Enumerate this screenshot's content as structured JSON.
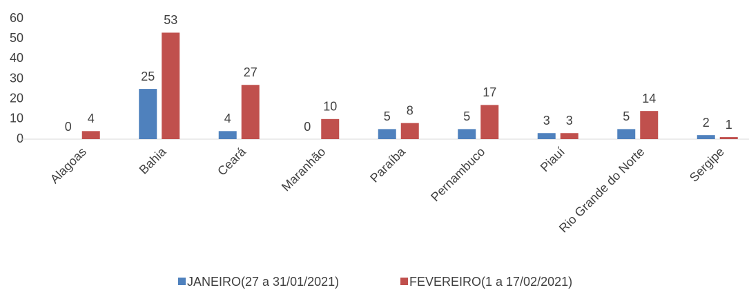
{
  "chart_data": {
    "type": "bar",
    "categories": [
      "Alagoas",
      "Bahia",
      "Ceará",
      "Maranhão",
      "Paraíba",
      "Pernambuco",
      "Piauí",
      "Rio Grande do Norte",
      "Sergipe"
    ],
    "series": [
      {
        "name": "JANEIRO(27 a 31/01/2021)",
        "color": "#4f81bd",
        "values": [
          0,
          25,
          4,
          0,
          5,
          5,
          3,
          5,
          2
        ]
      },
      {
        "name": "FEVEREIRO(1 a 17/02/2021)",
        "color": "#c0504d",
        "values": [
          4,
          53,
          27,
          10,
          8,
          17,
          3,
          14,
          1
        ]
      }
    ],
    "ylim": [
      0,
      60
    ],
    "yticks": [
      0,
      10,
      20,
      30,
      40,
      50,
      60
    ],
    "grid": false,
    "legend": "bottom"
  }
}
